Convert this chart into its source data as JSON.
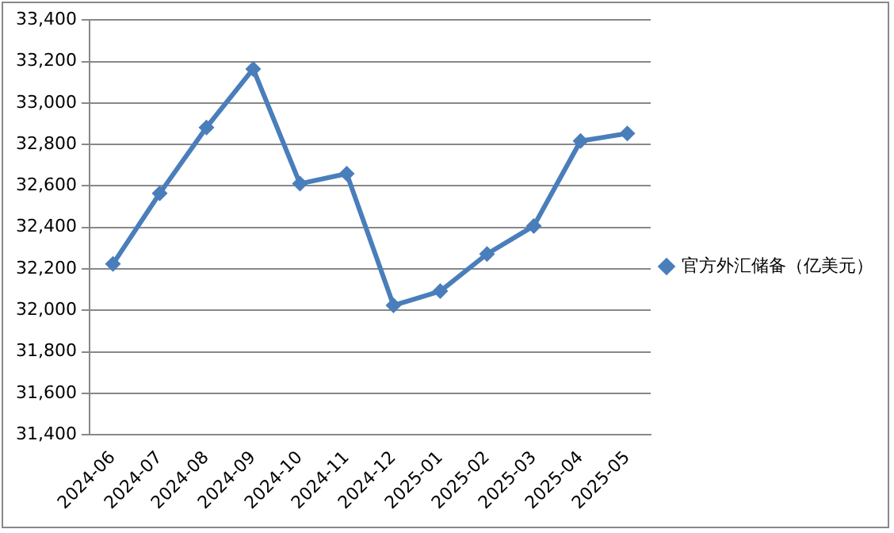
{
  "chart_data": {
    "type": "line",
    "categories": [
      "2024-06",
      "2024-07",
      "2024-08",
      "2024-09",
      "2024-10",
      "2024-11",
      "2024-12",
      "2025-01",
      "2025-02",
      "2025-03",
      "2025-04",
      "2025-05"
    ],
    "series": [
      {
        "name": "官方外汇储备（亿美元）",
        "color": "#4a7ebb",
        "values": [
          32224,
          32564,
          32882,
          33164,
          32611,
          32659,
          32024,
          32093,
          32272,
          32407,
          32817,
          32853
        ]
      }
    ],
    "ylim": [
      31400,
      33400
    ],
    "yticks": [
      {
        "value": 31400,
        "label": "31,400"
      },
      {
        "value": 31600,
        "label": "31,600"
      },
      {
        "value": 31800,
        "label": "31,800"
      },
      {
        "value": 32000,
        "label": "32,000"
      },
      {
        "value": 32200,
        "label": "32,200"
      },
      {
        "value": 32400,
        "label": "32,400"
      },
      {
        "value": 32600,
        "label": "32,600"
      },
      {
        "value": 32800,
        "label": "32,800"
      },
      {
        "value": 33000,
        "label": "33,000"
      },
      {
        "value": 33200,
        "label": "33,200"
      },
      {
        "value": 33400,
        "label": "33,400"
      }
    ],
    "grid": "y",
    "legend": "right",
    "marker": "diamond",
    "line_style": "solid"
  }
}
